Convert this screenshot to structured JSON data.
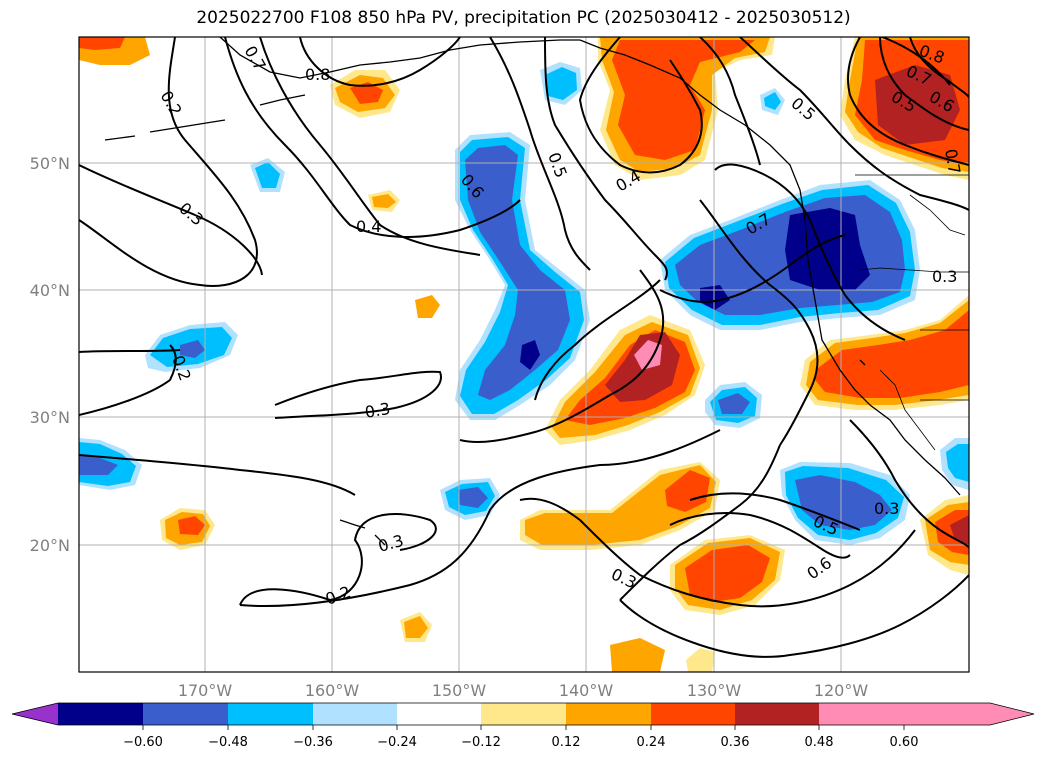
{
  "title": "2025022700 F108 850 hPa PV, precipitation PC (2025030412 - 2025030512)",
  "lat_labels": [
    "50°N",
    "40°N",
    "30°N",
    "20°N"
  ],
  "lon_labels": [
    "170°W",
    "160°W",
    "150°W",
    "140°W",
    "130°W",
    "120°W"
  ],
  "contour_labels": [
    "0.2",
    "0.3",
    "0.4",
    "0.5",
    "0.6",
    "0.7",
    "0.8"
  ],
  "colorbar": {
    "ticks": [
      "−0.60",
      "−0.48",
      "−0.36",
      "−0.24",
      "−0.12",
      "0.12",
      "0.24",
      "0.36",
      "0.48",
      "0.60"
    ],
    "colors": [
      "#9932cc",
      "#00008b",
      "#3a5fcd",
      "#00bfff",
      "#b0e2ff",
      "#ffffff",
      "#ffe78c",
      "#ffa500",
      "#ff4500",
      "#b22222",
      "#ff8cb4"
    ]
  }
}
